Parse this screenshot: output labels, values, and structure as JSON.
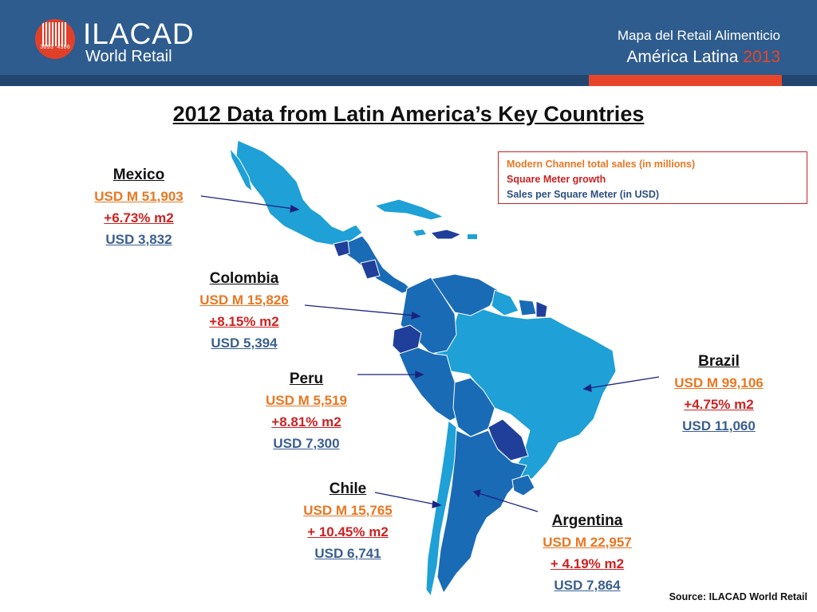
{
  "header": {
    "logo_name": "ILACAD",
    "logo_sub": "World Retail",
    "logo_number": "3693 4306",
    "line1": "Mapa del Retail Alimenticio",
    "line2_text": "América Latina",
    "line2_year": "2013"
  },
  "title": "2012 Data from Latin America’s Key Countries",
  "legend": {
    "item1": "Modern Channel total sales (in millions)",
    "item2": "Square Meter growth",
    "item3": "Sales per Square Meter (in USD)"
  },
  "countries": {
    "mexico": {
      "name": "Mexico",
      "sales": "USD M 51,903",
      "growth": "+6.73% m2",
      "per_m2": "USD 3,832"
    },
    "colombia": {
      "name": "Colombia",
      "sales": "USD M 15,826",
      "growth": "+8.15% m2",
      "per_m2": "USD 5,394"
    },
    "peru": {
      "name": "Peru",
      "sales": "USD M 5,519",
      "growth": "+8.81% m2",
      "per_m2": "USD 7,300"
    },
    "chile": {
      "name": "Chile",
      "sales": "USD M 15,765",
      "growth": "+ 10.45% m2",
      "per_m2": "USD 6,741"
    },
    "argentina": {
      "name": "Argentina",
      "sales": "USD M 22,957",
      "growth": "+ 4.19% m2",
      "per_m2": "USD 7,864"
    },
    "brazil": {
      "name": "Brazil",
      "sales": "USD M 99,106",
      "growth": "+4.75% m2",
      "per_m2": "USD 11,060"
    }
  },
  "colors": {
    "light": "#1fa0d6",
    "mid": "#1a6bb5",
    "dark": "#1f3f9a"
  },
  "source": "Source: ILACAD World Retail"
}
